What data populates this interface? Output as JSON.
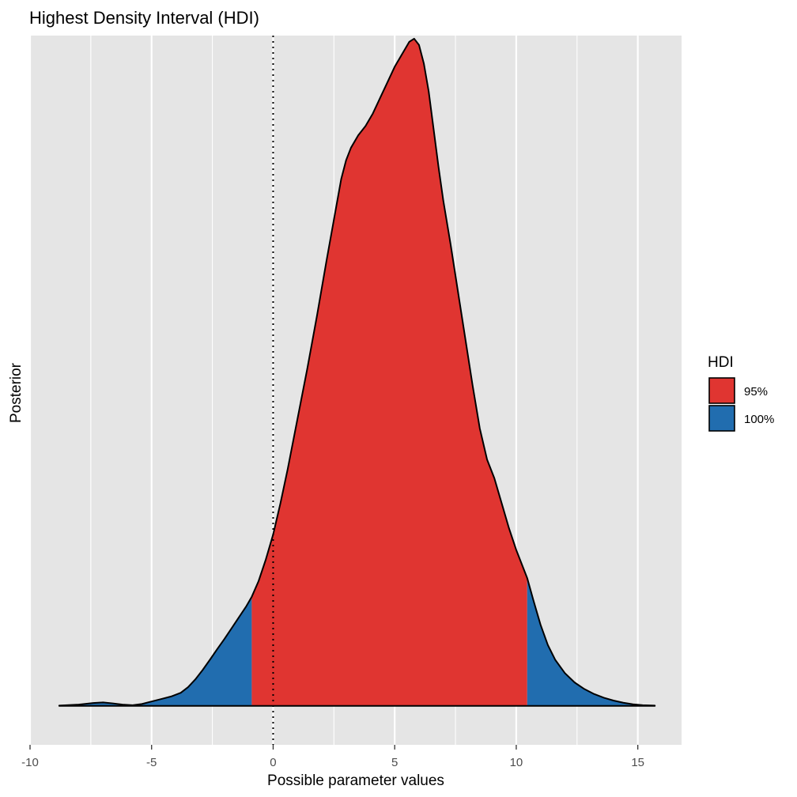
{
  "chart_data": {
    "type": "area",
    "title": "Highest Density Interval (HDI)",
    "xlabel": "Possible parameter values",
    "ylabel": "Posterior",
    "xlim": [
      -10,
      16.8
    ],
    "ylim": [
      -0.0125,
      0.215
    ],
    "x_ticks": [
      -10,
      -5,
      0,
      5,
      10,
      15
    ],
    "x_tick_labels": [
      "-10",
      "-5",
      "0",
      "5",
      "10",
      "15"
    ],
    "x_minor_ticks": [
      -7.5,
      -2.5,
      2.5,
      7.5,
      12.5
    ],
    "grid": true,
    "reference_line": {
      "x": 0,
      "style": "dotted"
    },
    "hdi_95": [
      -0.88,
      10.45
    ],
    "legend": {
      "title": "HDI",
      "position": "right",
      "entries": [
        {
          "label": "95%",
          "color": "#e03531"
        },
        {
          "label": "100%",
          "color": "#216daf"
        }
      ]
    },
    "colors": {
      "panel_bg": "#e5e5e5",
      "grid": "#ffffff",
      "hdi_95": "#e03531",
      "hdi_100": "#216daf",
      "outline": "#000000"
    },
    "density": {
      "x": [
        -8.8,
        -8.0,
        -7.4,
        -7.0,
        -6.6,
        -6.2,
        -5.8,
        -5.4,
        -5.0,
        -4.6,
        -4.2,
        -3.8,
        -3.5,
        -3.2,
        -2.9,
        -2.6,
        -2.3,
        -2.0,
        -1.7,
        -1.4,
        -1.1,
        -0.88,
        -0.6,
        -0.3,
        0.0,
        0.3,
        0.6,
        1.0,
        1.4,
        1.8,
        2.2,
        2.5,
        2.8,
        3.0,
        3.2,
        3.5,
        3.8,
        4.1,
        4.4,
        4.7,
        5.0,
        5.3,
        5.6,
        5.8,
        6.0,
        6.2,
        6.4,
        6.6,
        6.8,
        7.0,
        7.3,
        7.6,
        7.9,
        8.2,
        8.5,
        8.8,
        9.1,
        9.4,
        9.7,
        10.0,
        10.3,
        10.45,
        10.7,
        11.0,
        11.3,
        11.6,
        12.0,
        12.4,
        12.8,
        13.2,
        13.6,
        14.0,
        14.4,
        14.8,
        15.2,
        15.7
      ],
      "y": [
        0.0001,
        0.0004,
        0.0009,
        0.0011,
        0.0008,
        0.0004,
        0.0002,
        0.0006,
        0.0014,
        0.0022,
        0.003,
        0.0042,
        0.006,
        0.0085,
        0.0115,
        0.0148,
        0.0182,
        0.0215,
        0.025,
        0.0285,
        0.032,
        0.035,
        0.04,
        0.047,
        0.055,
        0.065,
        0.076,
        0.092,
        0.108,
        0.125,
        0.143,
        0.156,
        0.169,
        0.175,
        0.179,
        0.183,
        0.186,
        0.19,
        0.195,
        0.2,
        0.205,
        0.209,
        0.213,
        0.214,
        0.212,
        0.206,
        0.197,
        0.185,
        0.173,
        0.162,
        0.148,
        0.133,
        0.118,
        0.103,
        0.089,
        0.079,
        0.073,
        0.065,
        0.057,
        0.05,
        0.044,
        0.041,
        0.034,
        0.026,
        0.0195,
        0.0148,
        0.0105,
        0.0075,
        0.0054,
        0.0038,
        0.0026,
        0.0017,
        0.001,
        0.0005,
        0.0002,
        0.0001
      ]
    }
  }
}
